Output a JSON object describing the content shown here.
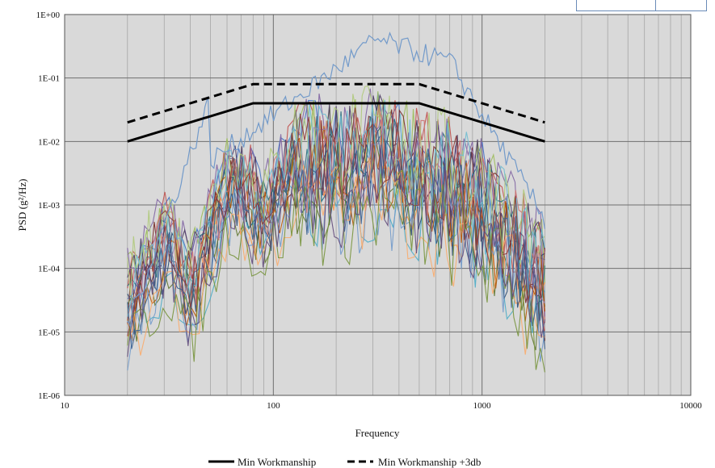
{
  "chart_data": {
    "type": "line",
    "title": "",
    "xlabel": "Frequency",
    "ylabel": "PSD (g²/Hz)",
    "x_scale": "log",
    "y_scale": "log",
    "xlim": [
      10,
      10000
    ],
    "ylim": [
      1e-06,
      1
    ],
    "grid": true,
    "plot_background": "#d9d9d9",
    "x_ticks": [
      "10",
      "100",
      "1000",
      "10000"
    ],
    "y_ticks": [
      "1E-06",
      "1E-05",
      "1E-04",
      "1E-03",
      "1E-02",
      "1E-01",
      "1E+00"
    ],
    "legend_position": "bottom",
    "series": [
      {
        "name": "Min Workmanship",
        "style": "solid",
        "color": "#000000",
        "x": [
          20,
          80,
          500,
          2000
        ],
        "y": [
          0.01,
          0.04,
          0.04,
          0.01
        ]
      },
      {
        "name": "Min Workmanship +3db",
        "style": "dashed",
        "color": "#000000",
        "x": [
          20,
          80,
          500,
          2000
        ],
        "y": [
          0.02,
          0.08,
          0.08,
          0.02
        ]
      }
    ],
    "measured_traces": {
      "count": 22,
      "x_range": [
        20,
        2000
      ],
      "colors": [
        "#4472c4",
        "#c0504d",
        "#9bbb59",
        "#8064a2",
        "#4bacc6",
        "#f79646",
        "#2c4d75",
        "#772c2a",
        "#5f7530",
        "#4d3b62",
        "#276a7c",
        "#b65708",
        "#729aca",
        "#cd7371",
        "#afc97a",
        "#9983b5",
        "#6fbdd1",
        "#f9ab6b",
        "#3a5f8f",
        "#8e3b39",
        "#77933c",
        "#604a7b"
      ]
    }
  }
}
